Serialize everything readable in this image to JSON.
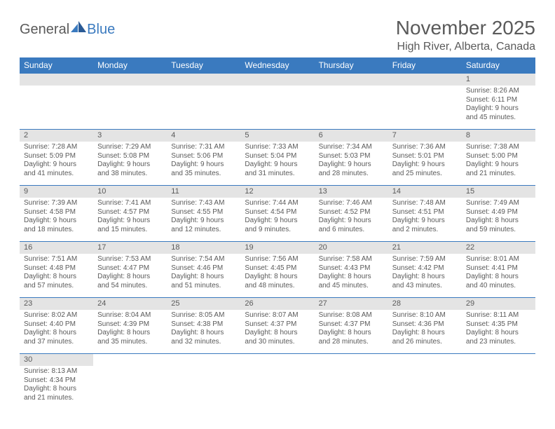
{
  "logo": {
    "text1": "General",
    "text2": "Blue"
  },
  "title": "November 2025",
  "location": "High River, Alberta, Canada",
  "colors": {
    "header_bg": "#3a7abf",
    "header_text": "#ffffff",
    "daynum_bg": "#e4e4e4",
    "text": "#5a5a5a",
    "row_border": "#3a7abf",
    "page_bg": "#ffffff"
  },
  "fonts": {
    "title_pt": 28,
    "location_pt": 16,
    "weekday_pt": 12,
    "daynum_pt": 11,
    "body_pt": 10
  },
  "weekdays": [
    "Sunday",
    "Monday",
    "Tuesday",
    "Wednesday",
    "Thursday",
    "Friday",
    "Saturday"
  ],
  "grid": [
    [
      null,
      null,
      null,
      null,
      null,
      null,
      {
        "n": "1",
        "sunrise": "8:26 AM",
        "sunset": "6:11 PM",
        "daylight": "9 hours and 45 minutes."
      }
    ],
    [
      {
        "n": "2",
        "sunrise": "7:28 AM",
        "sunset": "5:09 PM",
        "daylight": "9 hours and 41 minutes."
      },
      {
        "n": "3",
        "sunrise": "7:29 AM",
        "sunset": "5:08 PM",
        "daylight": "9 hours and 38 minutes."
      },
      {
        "n": "4",
        "sunrise": "7:31 AM",
        "sunset": "5:06 PM",
        "daylight": "9 hours and 35 minutes."
      },
      {
        "n": "5",
        "sunrise": "7:33 AM",
        "sunset": "5:04 PM",
        "daylight": "9 hours and 31 minutes."
      },
      {
        "n": "6",
        "sunrise": "7:34 AM",
        "sunset": "5:03 PM",
        "daylight": "9 hours and 28 minutes."
      },
      {
        "n": "7",
        "sunrise": "7:36 AM",
        "sunset": "5:01 PM",
        "daylight": "9 hours and 25 minutes."
      },
      {
        "n": "8",
        "sunrise": "7:38 AM",
        "sunset": "5:00 PM",
        "daylight": "9 hours and 21 minutes."
      }
    ],
    [
      {
        "n": "9",
        "sunrise": "7:39 AM",
        "sunset": "4:58 PM",
        "daylight": "9 hours and 18 minutes."
      },
      {
        "n": "10",
        "sunrise": "7:41 AM",
        "sunset": "4:57 PM",
        "daylight": "9 hours and 15 minutes."
      },
      {
        "n": "11",
        "sunrise": "7:43 AM",
        "sunset": "4:55 PM",
        "daylight": "9 hours and 12 minutes."
      },
      {
        "n": "12",
        "sunrise": "7:44 AM",
        "sunset": "4:54 PM",
        "daylight": "9 hours and 9 minutes."
      },
      {
        "n": "13",
        "sunrise": "7:46 AM",
        "sunset": "4:52 PM",
        "daylight": "9 hours and 6 minutes."
      },
      {
        "n": "14",
        "sunrise": "7:48 AM",
        "sunset": "4:51 PM",
        "daylight": "9 hours and 2 minutes."
      },
      {
        "n": "15",
        "sunrise": "7:49 AM",
        "sunset": "4:49 PM",
        "daylight": "8 hours and 59 minutes."
      }
    ],
    [
      {
        "n": "16",
        "sunrise": "7:51 AM",
        "sunset": "4:48 PM",
        "daylight": "8 hours and 57 minutes."
      },
      {
        "n": "17",
        "sunrise": "7:53 AM",
        "sunset": "4:47 PM",
        "daylight": "8 hours and 54 minutes."
      },
      {
        "n": "18",
        "sunrise": "7:54 AM",
        "sunset": "4:46 PM",
        "daylight": "8 hours and 51 minutes."
      },
      {
        "n": "19",
        "sunrise": "7:56 AM",
        "sunset": "4:45 PM",
        "daylight": "8 hours and 48 minutes."
      },
      {
        "n": "20",
        "sunrise": "7:58 AM",
        "sunset": "4:43 PM",
        "daylight": "8 hours and 45 minutes."
      },
      {
        "n": "21",
        "sunrise": "7:59 AM",
        "sunset": "4:42 PM",
        "daylight": "8 hours and 43 minutes."
      },
      {
        "n": "22",
        "sunrise": "8:01 AM",
        "sunset": "4:41 PM",
        "daylight": "8 hours and 40 minutes."
      }
    ],
    [
      {
        "n": "23",
        "sunrise": "8:02 AM",
        "sunset": "4:40 PM",
        "daylight": "8 hours and 37 minutes."
      },
      {
        "n": "24",
        "sunrise": "8:04 AM",
        "sunset": "4:39 PM",
        "daylight": "8 hours and 35 minutes."
      },
      {
        "n": "25",
        "sunrise": "8:05 AM",
        "sunset": "4:38 PM",
        "daylight": "8 hours and 32 minutes."
      },
      {
        "n": "26",
        "sunrise": "8:07 AM",
        "sunset": "4:37 PM",
        "daylight": "8 hours and 30 minutes."
      },
      {
        "n": "27",
        "sunrise": "8:08 AM",
        "sunset": "4:37 PM",
        "daylight": "8 hours and 28 minutes."
      },
      {
        "n": "28",
        "sunrise": "8:10 AM",
        "sunset": "4:36 PM",
        "daylight": "8 hours and 26 minutes."
      },
      {
        "n": "29",
        "sunrise": "8:11 AM",
        "sunset": "4:35 PM",
        "daylight": "8 hours and 23 minutes."
      }
    ],
    [
      {
        "n": "30",
        "sunrise": "8:13 AM",
        "sunset": "4:34 PM",
        "daylight": "8 hours and 21 minutes."
      },
      null,
      null,
      null,
      null,
      null,
      null
    ]
  ],
  "labels": {
    "sunrise": "Sunrise:",
    "sunset": "Sunset:",
    "daylight": "Daylight:"
  }
}
